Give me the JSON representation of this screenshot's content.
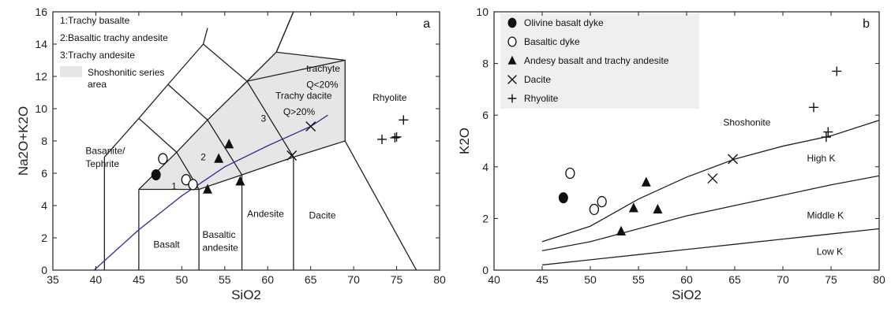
{
  "chart_data": [
    {
      "type": "scatter",
      "panel_label": "a",
      "xlabel": "SiO2",
      "ylabel": "Na2O+K2O",
      "xlim": [
        35,
        80
      ],
      "ylim": [
        0,
        16
      ],
      "xticks": [
        35,
        40,
        45,
        50,
        55,
        60,
        65,
        70,
        75,
        80
      ],
      "yticks": [
        0,
        2,
        4,
        6,
        8,
        10,
        12,
        14,
        16
      ],
      "legend": [
        {
          "key": "1:",
          "text": "Trachy basalte"
        },
        {
          "key": "2:",
          "text": "Basaltic trachy andesite"
        },
        {
          "key": "3:",
          "text": "Trachy andesite"
        },
        {
          "key": "",
          "text": "Shoshonitic series area"
        }
      ],
      "field_labels": [
        {
          "text": "Basanite/",
          "x": 38.8,
          "y": 7.2
        },
        {
          "text": "Tephrite",
          "x": 38.8,
          "y": 6.4
        },
        {
          "text": "1",
          "x": 48.8,
          "y": 5.0
        },
        {
          "text": "2",
          "x": 52.2,
          "y": 6.8
        },
        {
          "text": "3",
          "x": 59.2,
          "y": 9.2
        },
        {
          "text": "trachyte",
          "x": 64.5,
          "y": 12.3
        },
        {
          "text": "Q<20%",
          "x": 64.5,
          "y": 11.3
        },
        {
          "text": "Trachy dacite",
          "x": 60.9,
          "y": 10.6
        },
        {
          "text": "Q>20%",
          "x": 61.8,
          "y": 9.6
        },
        {
          "text": "Rhyolite",
          "x": 72.2,
          "y": 10.5
        },
        {
          "text": "Basalt",
          "x": 46.7,
          "y": 1.4
        },
        {
          "text": "Basaltic",
          "x": 52.4,
          "y": 2.0
        },
        {
          "text": "andesite",
          "x": 52.4,
          "y": 1.2
        },
        {
          "text": "Andesite",
          "x": 57.6,
          "y": 3.3
        },
        {
          "text": "Dacite",
          "x": 64.8,
          "y": 3.2
        }
      ],
      "boundaries": [
        [
          [
            41,
            0
          ],
          [
            41,
            7
          ],
          [
            45,
            9.4
          ],
          [
            48.4,
            11.5
          ],
          [
            52.5,
            14
          ],
          [
            53,
            15
          ]
        ],
        [
          [
            45,
            0
          ],
          [
            45,
            5
          ]
        ],
        [
          [
            45,
            5
          ],
          [
            49.4,
            7.3
          ],
          [
            53,
            9.3
          ],
          [
            57.6,
            11.7
          ],
          [
            61,
            13.5
          ],
          [
            63,
            16
          ]
        ],
        [
          [
            45,
            5
          ],
          [
            52,
            5
          ],
          [
            57,
            5.9
          ],
          [
            63,
            7
          ],
          [
            69,
            8
          ],
          [
            77.3,
            0
          ]
        ],
        [
          [
            52,
            0
          ],
          [
            52,
            5
          ]
        ],
        [
          [
            57,
            0
          ],
          [
            57,
            5.9
          ]
        ],
        [
          [
            63,
            0
          ],
          [
            63,
            7
          ]
        ],
        [
          [
            45,
            9.4
          ],
          [
            49.4,
            7.3
          ],
          [
            52,
            5
          ]
        ],
        [
          [
            48.4,
            11.5
          ],
          [
            53,
            9.3
          ],
          [
            57,
            5.9
          ]
        ],
        [
          [
            52.5,
            14
          ],
          [
            57.6,
            11.7
          ],
          [
            63,
            7
          ]
        ],
        [
          [
            69,
            8
          ],
          [
            69,
            13
          ],
          [
            61,
            13.5
          ]
        ],
        [
          [
            57.6,
            11.7
          ],
          [
            69,
            13
          ]
        ],
        [
          [
            61,
            13.5
          ],
          [
            63,
            16
          ]
        ]
      ],
      "shoshonitic_area": [
        [
          45,
          5
        ],
        [
          52,
          5
        ],
        [
          57,
          5.9
        ],
        [
          63,
          7
        ],
        [
          69,
          8
        ],
        [
          69,
          13
        ],
        [
          61,
          13.5
        ],
        [
          57.6,
          11.7
        ],
        [
          53,
          9.3
        ]
      ],
      "alkaline_line": [
        [
          39.8,
          0
        ],
        [
          45,
          2.5
        ],
        [
          50,
          4.6
        ],
        [
          55,
          6.4
        ],
        [
          60,
          7.7
        ],
        [
          65,
          8.9
        ],
        [
          67,
          9.6
        ]
      ],
      "series": [
        {
          "name": "Olivine basalt dyke",
          "marker": "filled-circle",
          "points": [
            [
              47,
              5.9
            ]
          ]
        },
        {
          "name": "Basaltic dyke",
          "marker": "open-circle",
          "points": [
            [
              47.8,
              6.9
            ],
            [
              50.5,
              5.6
            ],
            [
              51.3,
              5.3
            ]
          ]
        },
        {
          "name": "Andesy basalt and trachy andesite",
          "marker": "filled-triangle",
          "points": [
            [
              53,
              5.0
            ],
            [
              54.3,
              6.9
            ],
            [
              55.5,
              7.8
            ],
            [
              56.8,
              5.5
            ]
          ]
        },
        {
          "name": "Dacite",
          "marker": "cross-x",
          "points": [
            [
              62.8,
              7.1
            ],
            [
              65,
              8.9
            ]
          ]
        },
        {
          "name": "Rhyolite",
          "marker": "plus",
          "points": [
            [
              73.3,
              8.1
            ],
            [
              74.8,
              8.2
            ],
            [
              75,
              8.25
            ],
            [
              75.8,
              9.3
            ]
          ]
        }
      ]
    },
    {
      "type": "scatter",
      "panel_label": "b",
      "xlabel": "SiO2",
      "ylabel": "K2O",
      "xlim": [
        40,
        80
      ],
      "ylim": [
        0,
        10
      ],
      "xticks": [
        40,
        45,
        50,
        55,
        60,
        65,
        70,
        75,
        80
      ],
      "yticks": [
        0,
        2,
        4,
        6,
        8,
        10
      ],
      "legend": [
        {
          "marker": "filled-circle",
          "text": "Olivine basalt dyke"
        },
        {
          "marker": "open-circle",
          "text": "Basaltic dyke"
        },
        {
          "marker": "filled-triangle",
          "text": "Andesy basalt and trachy andesite"
        },
        {
          "marker": "cross-x",
          "text": "Dacite"
        },
        {
          "marker": "plus",
          "text": "Rhyolite"
        }
      ],
      "field_labels": [
        {
          "text": "Shoshonite",
          "x": 63.8,
          "y": 5.6
        },
        {
          "text": "High K",
          "x": 72.5,
          "y": 4.2
        },
        {
          "text": "Middle K",
          "x": 72.5,
          "y": 2.0
        },
        {
          "text": "Low K",
          "x": 73.5,
          "y": 0.6
        }
      ],
      "boundaries": [
        [
          [
            45,
            1.1
          ],
          [
            50,
            1.7
          ],
          [
            55,
            2.75
          ],
          [
            60,
            3.6
          ],
          [
            65,
            4.3
          ],
          [
            70,
            4.8
          ],
          [
            75,
            5.2
          ],
          [
            80,
            5.8
          ]
        ],
        [
          [
            45,
            0.75
          ],
          [
            50,
            1.1
          ],
          [
            55,
            1.6
          ],
          [
            60,
            2.1
          ],
          [
            65,
            2.5
          ],
          [
            70,
            2.9
          ],
          [
            75,
            3.3
          ],
          [
            80,
            3.65
          ]
        ],
        [
          [
            45,
            0.2
          ],
          [
            50,
            0.4
          ],
          [
            55,
            0.6
          ],
          [
            60,
            0.8
          ],
          [
            65,
            1.0
          ],
          [
            70,
            1.2
          ],
          [
            75,
            1.4
          ],
          [
            80,
            1.6
          ]
        ]
      ],
      "series": [
        {
          "name": "Olivine basalt dyke",
          "marker": "filled-circle",
          "points": [
            [
              47.2,
              2.8
            ]
          ]
        },
        {
          "name": "Basaltic dyke",
          "marker": "open-circle",
          "points": [
            [
              47.9,
              3.75
            ],
            [
              50.4,
              2.35
            ],
            [
              51.2,
              2.65
            ]
          ]
        },
        {
          "name": "Andesy basalt and trachy andesite",
          "marker": "filled-triangle",
          "points": [
            [
              53.2,
              1.5
            ],
            [
              54.5,
              2.4
            ],
            [
              55.8,
              3.4
            ],
            [
              57,
              2.35
            ]
          ]
        },
        {
          "name": "Dacite",
          "marker": "cross-x",
          "points": [
            [
              62.7,
              3.55
            ],
            [
              64.8,
              4.3
            ]
          ]
        },
        {
          "name": "Rhyolite",
          "marker": "plus",
          "points": [
            [
              73.2,
              6.3
            ],
            [
              74.5,
              5.15
            ],
            [
              74.7,
              5.35
            ],
            [
              75.6,
              7.7
            ]
          ]
        }
      ]
    }
  ]
}
